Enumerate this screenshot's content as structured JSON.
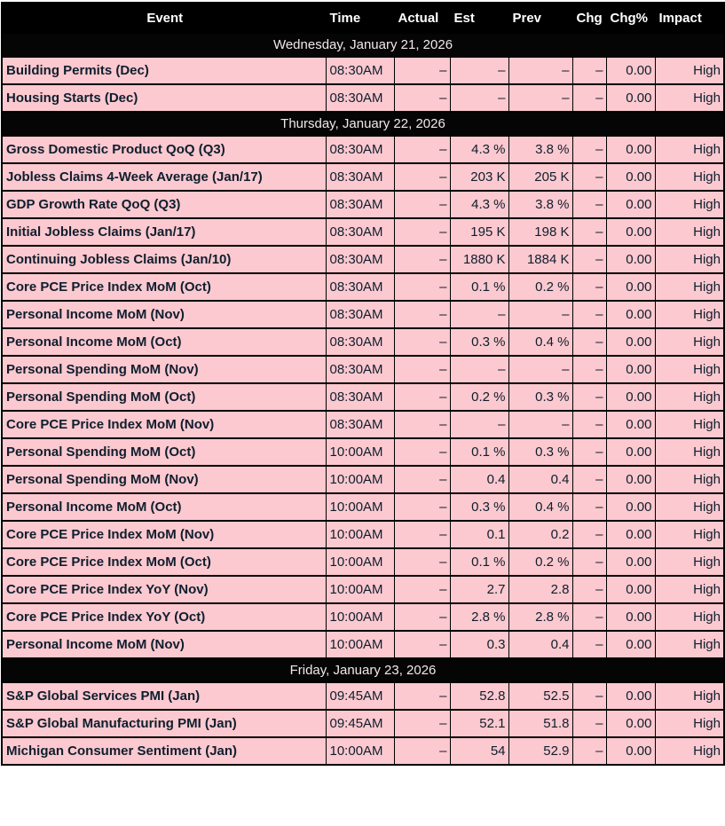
{
  "colors": {
    "header_bg": "#000000",
    "header_text": "#ffffff",
    "date_bar_bg": "#050505",
    "date_bar_text": "#f2e7e9",
    "row_bg": "#fbc9cf",
    "row_text": "#0f1e2e",
    "grid_border": "#000000"
  },
  "table": {
    "columns": [
      {
        "key": "event",
        "label": "Event"
      },
      {
        "key": "time",
        "label": "Time"
      },
      {
        "key": "actual",
        "label": "Actual"
      },
      {
        "key": "est",
        "label": "Est"
      },
      {
        "key": "prev",
        "label": "Prev"
      },
      {
        "key": "chg",
        "label": "Chg"
      },
      {
        "key": "chgpct",
        "label": "Chg%"
      },
      {
        "key": "impact",
        "label": "Impact"
      }
    ],
    "groups": [
      {
        "date": "Wednesday, January 21, 2026",
        "rows": [
          {
            "event": "Building Permits (Dec)",
            "time": "08:30AM",
            "actual": "–",
            "est": "–",
            "prev": "–",
            "chg": "–",
            "chgpct": "0.00",
            "impact": "High"
          },
          {
            "event": "Housing Starts (Dec)",
            "time": "08:30AM",
            "actual": "–",
            "est": "–",
            "prev": "–",
            "chg": "–",
            "chgpct": "0.00",
            "impact": "High"
          }
        ]
      },
      {
        "date": "Thursday, January 22, 2026",
        "rows": [
          {
            "event": "Gross Domestic Product QoQ (Q3)",
            "time": "08:30AM",
            "actual": "–",
            "est": "4.3 %",
            "prev": "3.8 %",
            "chg": "–",
            "chgpct": "0.00",
            "impact": "High"
          },
          {
            "event": "Jobless Claims 4-Week Average (Jan/17)",
            "time": "08:30AM",
            "actual": "–",
            "est": "203 K",
            "prev": "205 K",
            "chg": "–",
            "chgpct": "0.00",
            "impact": "High"
          },
          {
            "event": "GDP Growth Rate QoQ (Q3)",
            "time": "08:30AM",
            "actual": "–",
            "est": "4.3 %",
            "prev": "3.8 %",
            "chg": "–",
            "chgpct": "0.00",
            "impact": "High"
          },
          {
            "event": "Initial Jobless Claims (Jan/17)",
            "time": "08:30AM",
            "actual": "–",
            "est": "195 K",
            "prev": "198 K",
            "chg": "–",
            "chgpct": "0.00",
            "impact": "High"
          },
          {
            "event": "Continuing Jobless Claims (Jan/10)",
            "time": "08:30AM",
            "actual": "–",
            "est": "1880 K",
            "prev": "1884 K",
            "chg": "–",
            "chgpct": "0.00",
            "impact": "High"
          },
          {
            "event": "Core PCE Price Index MoM (Oct)",
            "time": "08:30AM",
            "actual": "–",
            "est": "0.1 %",
            "prev": "0.2 %",
            "chg": "–",
            "chgpct": "0.00",
            "impact": "High"
          },
          {
            "event": "Personal Income MoM (Nov)",
            "time": "08:30AM",
            "actual": "–",
            "est": "–",
            "prev": "–",
            "chg": "–",
            "chgpct": "0.00",
            "impact": "High"
          },
          {
            "event": "Personal Income MoM (Oct)",
            "time": "08:30AM",
            "actual": "–",
            "est": "0.3 %",
            "prev": "0.4 %",
            "chg": "–",
            "chgpct": "0.00",
            "impact": "High"
          },
          {
            "event": "Personal Spending MoM (Nov)",
            "time": "08:30AM",
            "actual": "–",
            "est": "–",
            "prev": "–",
            "chg": "–",
            "chgpct": "0.00",
            "impact": "High"
          },
          {
            "event": "Personal Spending MoM (Oct)",
            "time": "08:30AM",
            "actual": "–",
            "est": "0.2 %",
            "prev": "0.3 %",
            "chg": "–",
            "chgpct": "0.00",
            "impact": "High"
          },
          {
            "event": "Core PCE Price Index MoM (Nov)",
            "time": "08:30AM",
            "actual": "–",
            "est": "–",
            "prev": "–",
            "chg": "–",
            "chgpct": "0.00",
            "impact": "High"
          },
          {
            "event": "Personal Spending MoM (Oct)",
            "time": "10:00AM",
            "actual": "–",
            "est": "0.1 %",
            "prev": "0.3 %",
            "chg": "–",
            "chgpct": "0.00",
            "impact": "High"
          },
          {
            "event": "Personal Spending MoM (Nov)",
            "time": "10:00AM",
            "actual": "–",
            "est": "0.4",
            "prev": "0.4",
            "chg": "–",
            "chgpct": "0.00",
            "impact": "High"
          },
          {
            "event": "Personal Income MoM (Oct)",
            "time": "10:00AM",
            "actual": "–",
            "est": "0.3 %",
            "prev": "0.4 %",
            "chg": "–",
            "chgpct": "0.00",
            "impact": "High"
          },
          {
            "event": "Core PCE Price Index MoM (Nov)",
            "time": "10:00AM",
            "actual": "–",
            "est": "0.1",
            "prev": "0.2",
            "chg": "–",
            "chgpct": "0.00",
            "impact": "High"
          },
          {
            "event": "Core PCE Price Index MoM (Oct)",
            "time": "10:00AM",
            "actual": "–",
            "est": "0.1 %",
            "prev": "0.2 %",
            "chg": "–",
            "chgpct": "0.00",
            "impact": "High"
          },
          {
            "event": "Core PCE Price Index YoY (Nov)",
            "time": "10:00AM",
            "actual": "–",
            "est": "2.7",
            "prev": "2.8",
            "chg": "–",
            "chgpct": "0.00",
            "impact": "High"
          },
          {
            "event": "Core PCE Price Index YoY (Oct)",
            "time": "10:00AM",
            "actual": "–",
            "est": "2.8 %",
            "prev": "2.8 %",
            "chg": "–",
            "chgpct": "0.00",
            "impact": "High"
          },
          {
            "event": "Personal Income MoM (Nov)",
            "time": "10:00AM",
            "actual": "–",
            "est": "0.3",
            "prev": "0.4",
            "chg": "–",
            "chgpct": "0.00",
            "impact": "High"
          }
        ]
      },
      {
        "date": "Friday, January 23, 2026",
        "rows": [
          {
            "event": "S&P Global Services PMI (Jan)",
            "time": "09:45AM",
            "actual": "–",
            "est": "52.8",
            "prev": "52.5",
            "chg": "–",
            "chgpct": "0.00",
            "impact": "High"
          },
          {
            "event": "S&P Global Manufacturing PMI (Jan)",
            "time": "09:45AM",
            "actual": "–",
            "est": "52.1",
            "prev": "51.8",
            "chg": "–",
            "chgpct": "0.00",
            "impact": "High"
          },
          {
            "event": "Michigan Consumer Sentiment (Jan)",
            "time": "10:00AM",
            "actual": "–",
            "est": "54",
            "prev": "52.9",
            "chg": "–",
            "chgpct": "0.00",
            "impact": "High"
          }
        ]
      }
    ]
  }
}
